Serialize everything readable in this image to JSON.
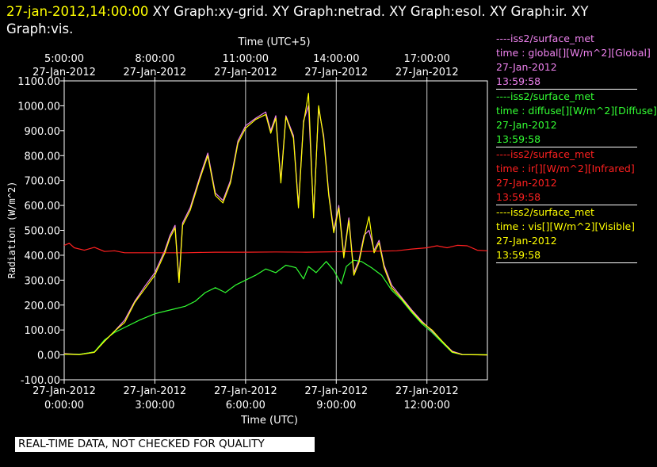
{
  "header": {
    "timestamp": "27-jan-2012,14:00:00",
    "graphs": "XY Graph:xy-grid.  XY Graph:netrad.  XY Graph:esol.  XY Graph:ir.  XY Graph:vis."
  },
  "notice": "REAL-TIME DATA, NOT CHECKED FOR QUALITY",
  "legend": [
    {
      "line": "----iss2/surface_met",
      "var": "time : global[][W/m^2][Global]",
      "date": "27-Jan-2012",
      "time": "13:59:58",
      "color": "#ee82ee"
    },
    {
      "line": "----iss2/surface_met",
      "var": "time : diffuse[][W/m^2][Diffuse]",
      "date": "27-Jan-2012",
      "time": "13:59:58",
      "color": "#33ff33"
    },
    {
      "line": "----iss2/surface_met",
      "var": "time : ir[][W/m^2][Infrared]",
      "date": "27-Jan-2012",
      "time": "13:59:58",
      "color": "#ff2020"
    },
    {
      "line": "----iss2/surface_met",
      "var": "time : vis[][W/m^2][Visible]",
      "date": "27-Jan-2012",
      "time": "13:59:58",
      "color": "#ffff00"
    }
  ],
  "chart_data": {
    "type": "line",
    "title": "",
    "xlabel": "Time (UTC)",
    "x2label": "Time (UTC+5)",
    "ylabel": "Radiation (W/m^2)",
    "ylim": [
      -100,
      1100
    ],
    "xlim": [
      "2012-01-27 00:00",
      "2012-01-27 14:00"
    ],
    "y_ticks": [
      "-100.00",
      "0.00",
      "100.00",
      "200.00",
      "300.00",
      "400.00",
      "500.00",
      "600.00",
      "700.00",
      "800.00",
      "900.00",
      "1000.00",
      "1100.00"
    ],
    "x_ticks": [
      {
        "t": "2012-01-27 00:00",
        "date": "27-Jan-2012",
        "time": "0:00:00"
      },
      {
        "t": "2012-01-27 03:00",
        "date": "27-Jan-2012",
        "time": "3:00:00"
      },
      {
        "t": "2012-01-27 06:00",
        "date": "27-Jan-2012",
        "time": "6:00:00"
      },
      {
        "t": "2012-01-27 09:00",
        "date": "27-Jan-2012",
        "time": "9:00:00"
      },
      {
        "t": "2012-01-27 12:00",
        "date": "27-Jan-2012",
        "time": "12:00:00"
      }
    ],
    "x2_ticks": [
      {
        "t": "2012-01-27 00:00",
        "time": "5:00:00",
        "date": "27-Jan-2012"
      },
      {
        "t": "2012-01-27 03:00",
        "time": "8:00:00",
        "date": "27-Jan-2012"
      },
      {
        "t": "2012-01-27 06:00",
        "time": "11:00:00",
        "date": "27-Jan-2012"
      },
      {
        "t": "2012-01-27 09:00",
        "time": "14:00:00",
        "date": "27-Jan-2012"
      },
      {
        "t": "2012-01-27 12:00",
        "time": "17:00:00",
        "date": "27-Jan-2012"
      }
    ],
    "grid": true,
    "series": [
      {
        "name": "global",
        "color": "#ee82ee",
        "points": [
          [
            "2012-01-27 00:00",
            5
          ],
          [
            "2012-01-27 00:30",
            2
          ],
          [
            "2012-01-27 01:00",
            12
          ],
          [
            "2012-01-27 01:20",
            55
          ],
          [
            "2012-01-27 01:40",
            95
          ],
          [
            "2012-01-27 02:00",
            140
          ],
          [
            "2012-01-27 02:20",
            215
          ],
          [
            "2012-01-27 02:40",
            275
          ],
          [
            "2012-01-27 03:00",
            330
          ],
          [
            "2012-01-27 03:20",
            420
          ],
          [
            "2012-01-27 03:30",
            480
          ],
          [
            "2012-01-27 03:40",
            520
          ],
          [
            "2012-01-27 03:45",
            380
          ],
          [
            "2012-01-27 03:48",
            300
          ],
          [
            "2012-01-27 03:55",
            530
          ],
          [
            "2012-01-27 04:10",
            590
          ],
          [
            "2012-01-27 04:30",
            720
          ],
          [
            "2012-01-27 04:45",
            810
          ],
          [
            "2012-01-27 05:00",
            650
          ],
          [
            "2012-01-27 05:15",
            620
          ],
          [
            "2012-01-27 05:30",
            700
          ],
          [
            "2012-01-27 05:45",
            860
          ],
          [
            "2012-01-27 06:00",
            920
          ],
          [
            "2012-01-27 06:20",
            950
          ],
          [
            "2012-01-27 06:40",
            975
          ],
          [
            "2012-01-27 06:50",
            900
          ],
          [
            "2012-01-27 07:00",
            960
          ],
          [
            "2012-01-27 07:10",
            700
          ],
          [
            "2012-01-27 07:20",
            960
          ],
          [
            "2012-01-27 07:35",
            880
          ],
          [
            "2012-01-27 07:45",
            600
          ],
          [
            "2012-01-27 07:55",
            940
          ],
          [
            "2012-01-27 08:05",
            1000
          ],
          [
            "2012-01-27 08:15",
            560
          ],
          [
            "2012-01-27 08:25",
            990
          ],
          [
            "2012-01-27 08:35",
            880
          ],
          [
            "2012-01-27 08:45",
            650
          ],
          [
            "2012-01-27 08:55",
            500
          ],
          [
            "2012-01-27 09:05",
            600
          ],
          [
            "2012-01-27 09:15",
            400
          ],
          [
            "2012-01-27 09:25",
            550
          ],
          [
            "2012-01-27 09:35",
            330
          ],
          [
            "2012-01-27 09:45",
            380
          ],
          [
            "2012-01-27 09:55",
            480
          ],
          [
            "2012-01-27 10:05",
            500
          ],
          [
            "2012-01-27 10:15",
            420
          ],
          [
            "2012-01-27 10:25",
            460
          ],
          [
            "2012-01-27 10:35",
            360
          ],
          [
            "2012-01-27 10:50",
            280
          ],
          [
            "2012-01-27 11:10",
            230
          ],
          [
            "2012-01-27 11:30",
            180
          ],
          [
            "2012-01-27 11:50",
            135
          ],
          [
            "2012-01-27 12:10",
            95
          ],
          [
            "2012-01-27 12:30",
            55
          ],
          [
            "2012-01-27 12:50",
            15
          ],
          [
            "2012-01-27 13:10",
            2
          ],
          [
            "2012-01-27 14:00",
            0
          ]
        ]
      },
      {
        "name": "diffuse",
        "color": "#33ff33",
        "points": [
          [
            "2012-01-27 00:00",
            3
          ],
          [
            "2012-01-27 00:30",
            2
          ],
          [
            "2012-01-27 01:00",
            12
          ],
          [
            "2012-01-27 01:20",
            60
          ],
          [
            "2012-01-27 01:40",
            90
          ],
          [
            "2012-01-27 02:00",
            110
          ],
          [
            "2012-01-27 02:30",
            140
          ],
          [
            "2012-01-27 03:00",
            165
          ],
          [
            "2012-01-27 03:30",
            180
          ],
          [
            "2012-01-27 04:00",
            195
          ],
          [
            "2012-01-27 04:20",
            215
          ],
          [
            "2012-01-27 04:40",
            250
          ],
          [
            "2012-01-27 05:00",
            270
          ],
          [
            "2012-01-27 05:20",
            250
          ],
          [
            "2012-01-27 05:40",
            280
          ],
          [
            "2012-01-27 06:00",
            300
          ],
          [
            "2012-01-27 06:20",
            320
          ],
          [
            "2012-01-27 06:40",
            345
          ],
          [
            "2012-01-27 07:00",
            330
          ],
          [
            "2012-01-27 07:20",
            360
          ],
          [
            "2012-01-27 07:40",
            350
          ],
          [
            "2012-01-27 07:55",
            305
          ],
          [
            "2012-01-27 08:05",
            355
          ],
          [
            "2012-01-27 08:20",
            330
          ],
          [
            "2012-01-27 08:40",
            375
          ],
          [
            "2012-01-27 08:55",
            340
          ],
          [
            "2012-01-27 09:10",
            285
          ],
          [
            "2012-01-27 09:20",
            355
          ],
          [
            "2012-01-27 09:35",
            380
          ],
          [
            "2012-01-27 09:50",
            375
          ],
          [
            "2012-01-27 10:10",
            350
          ],
          [
            "2012-01-27 10:30",
            320
          ],
          [
            "2012-01-27 10:50",
            260
          ],
          [
            "2012-01-27 11:10",
            220
          ],
          [
            "2012-01-27 11:30",
            170
          ],
          [
            "2012-01-27 11:50",
            125
          ],
          [
            "2012-01-27 12:10",
            90
          ],
          [
            "2012-01-27 12:30",
            50
          ],
          [
            "2012-01-27 12:50",
            10
          ],
          [
            "2012-01-27 13:10",
            1
          ],
          [
            "2012-01-27 14:00",
            1
          ]
        ]
      },
      {
        "name": "ir",
        "color": "#ff2020",
        "points": [
          [
            "2012-01-27 00:00",
            440
          ],
          [
            "2012-01-27 00:10",
            448
          ],
          [
            "2012-01-27 00:20",
            430
          ],
          [
            "2012-01-27 00:40",
            420
          ],
          [
            "2012-01-27 01:00",
            432
          ],
          [
            "2012-01-27 01:20",
            415
          ],
          [
            "2012-01-27 01:40",
            418
          ],
          [
            "2012-01-27 02:00",
            410
          ],
          [
            "2012-01-27 03:00",
            410
          ],
          [
            "2012-01-27 04:00",
            410
          ],
          [
            "2012-01-27 05:00",
            412
          ],
          [
            "2012-01-27 06:00",
            412
          ],
          [
            "2012-01-27 07:00",
            413
          ],
          [
            "2012-01-27 08:00",
            412
          ],
          [
            "2012-01-27 09:00",
            414
          ],
          [
            "2012-01-27 10:00",
            415
          ],
          [
            "2012-01-27 11:00",
            418
          ],
          [
            "2012-01-27 11:30",
            425
          ],
          [
            "2012-01-27 12:00",
            430
          ],
          [
            "2012-01-27 12:20",
            438
          ],
          [
            "2012-01-27 12:40",
            430
          ],
          [
            "2012-01-27 13:00",
            440
          ],
          [
            "2012-01-27 13:20",
            438
          ],
          [
            "2012-01-27 13:40",
            420
          ],
          [
            "2012-01-27 14:00",
            418
          ]
        ]
      },
      {
        "name": "vis",
        "color": "#ffff00",
        "points": [
          [
            "2012-01-27 00:00",
            3
          ],
          [
            "2012-01-27 00:30",
            1
          ],
          [
            "2012-01-27 01:00",
            10
          ],
          [
            "2012-01-27 01:20",
            55
          ],
          [
            "2012-01-27 01:40",
            95
          ],
          [
            "2012-01-27 02:00",
            130
          ],
          [
            "2012-01-27 02:20",
            210
          ],
          [
            "2012-01-27 02:40",
            265
          ],
          [
            "2012-01-27 03:00",
            320
          ],
          [
            "2012-01-27 03:20",
            410
          ],
          [
            "2012-01-27 03:30",
            470
          ],
          [
            "2012-01-27 03:40",
            510
          ],
          [
            "2012-01-27 03:45",
            370
          ],
          [
            "2012-01-27 03:48",
            290
          ],
          [
            "2012-01-27 03:55",
            520
          ],
          [
            "2012-01-27 04:10",
            580
          ],
          [
            "2012-01-27 04:30",
            710
          ],
          [
            "2012-01-27 04:45",
            800
          ],
          [
            "2012-01-27 05:00",
            640
          ],
          [
            "2012-01-27 05:15",
            610
          ],
          [
            "2012-01-27 05:30",
            690
          ],
          [
            "2012-01-27 05:45",
            850
          ],
          [
            "2012-01-27 06:00",
            910
          ],
          [
            "2012-01-27 06:20",
            945
          ],
          [
            "2012-01-27 06:40",
            965
          ],
          [
            "2012-01-27 06:50",
            890
          ],
          [
            "2012-01-27 07:00",
            950
          ],
          [
            "2012-01-27 07:10",
            690
          ],
          [
            "2012-01-27 07:20",
            955
          ],
          [
            "2012-01-27 07:35",
            870
          ],
          [
            "2012-01-27 07:45",
            590
          ],
          [
            "2012-01-27 07:55",
            930
          ],
          [
            "2012-01-27 08:05",
            1050
          ],
          [
            "2012-01-27 08:15",
            550
          ],
          [
            "2012-01-27 08:25",
            1000
          ],
          [
            "2012-01-27 08:35",
            870
          ],
          [
            "2012-01-27 08:45",
            640
          ],
          [
            "2012-01-27 08:55",
            490
          ],
          [
            "2012-01-27 09:05",
            590
          ],
          [
            "2012-01-27 09:15",
            390
          ],
          [
            "2012-01-27 09:25",
            540
          ],
          [
            "2012-01-27 09:35",
            320
          ],
          [
            "2012-01-27 09:45",
            370
          ],
          [
            "2012-01-27 09:55",
            470
          ],
          [
            "2012-01-27 10:05",
            555
          ],
          [
            "2012-01-27 10:15",
            410
          ],
          [
            "2012-01-27 10:25",
            450
          ],
          [
            "2012-01-27 10:35",
            350
          ],
          [
            "2012-01-27 10:50",
            270
          ],
          [
            "2012-01-27 11:10",
            225
          ],
          [
            "2012-01-27 11:30",
            175
          ],
          [
            "2012-01-27 11:50",
            130
          ],
          [
            "2012-01-27 12:10",
            100
          ],
          [
            "2012-01-27 12:30",
            55
          ],
          [
            "2012-01-27 12:50",
            12
          ],
          [
            "2012-01-27 13:10",
            1
          ],
          [
            "2012-01-27 14:00",
            0
          ]
        ]
      }
    ]
  }
}
